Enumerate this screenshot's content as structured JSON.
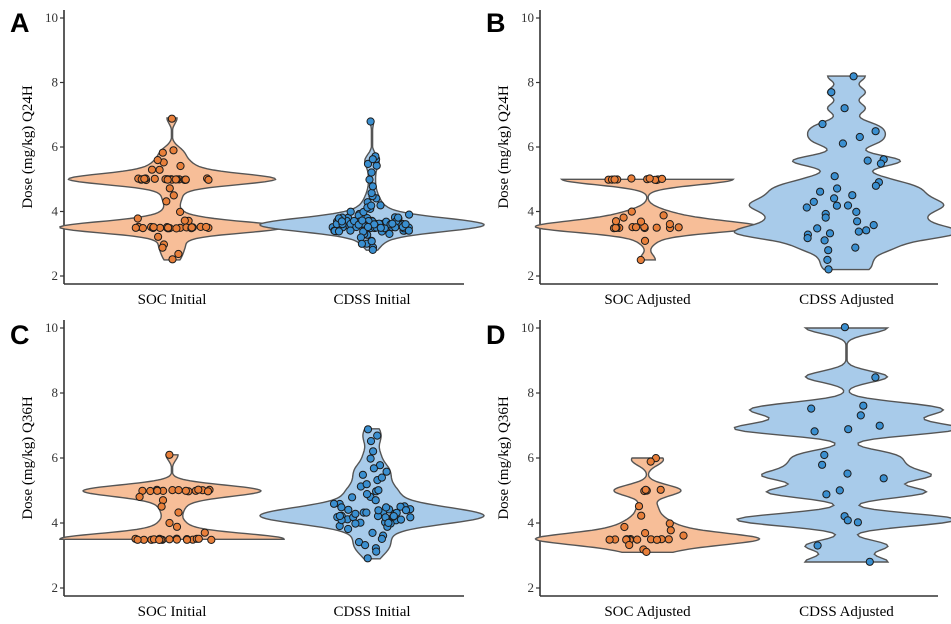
{
  "colors": {
    "soc_fill": "#f7be98",
    "soc_point": "#e87f3a",
    "cdss_fill": "#a8cbea",
    "cdss_point": "#3a8fd0",
    "outline": "#555555",
    "point_edge": "#1b1b1b"
  },
  "chart_data": [
    {
      "type": "violin",
      "panel": "A",
      "ylabel": "Dose (mg/kg) Q24H",
      "ylim": [
        2,
        10
      ],
      "yticks": [
        2,
        4,
        6,
        8,
        10
      ],
      "categories": [
        "SOC Initial",
        "CDSS Initial"
      ],
      "grid": false,
      "series": [
        {
          "values": [
            5.0,
            5.0,
            5.0,
            5.0,
            5.0,
            5.0,
            5.0,
            5.0,
            5.0,
            5.0,
            5.0,
            5.0,
            5.0,
            5.0,
            5.0,
            5.0,
            5.0,
            5.0,
            5.0,
            5.0,
            3.5,
            3.5,
            3.5,
            3.5,
            3.5,
            3.5,
            3.5,
            3.5,
            3.5,
            3.5,
            3.5,
            3.5,
            3.5,
            3.5,
            3.5,
            3.5,
            3.5,
            3.5,
            3.5,
            3.5,
            3.5,
            5.3,
            5.3,
            5.4,
            5.5,
            5.6,
            5.9,
            5.8,
            4.7,
            4.5,
            4.3,
            4.0,
            3.8,
            3.7,
            3.7,
            3.2,
            3.0,
            2.9,
            2.5,
            2.7,
            6.9
          ]
        },
        {
          "values": [
            3.6,
            3.7,
            3.5,
            3.6,
            3.8,
            3.4,
            3.6,
            3.7,
            3.5,
            3.6,
            3.9,
            3.3,
            3.6,
            3.5,
            3.7,
            3.6,
            3.4,
            3.8,
            3.6,
            3.5,
            3.7,
            3.6,
            3.4,
            3.5,
            3.6,
            3.7,
            3.8,
            3.5,
            3.6,
            3.3,
            3.9,
            3.6,
            3.5,
            3.7,
            3.6,
            3.4,
            3.6,
            3.5,
            3.7,
            3.8,
            3.6,
            3.5,
            3.4,
            3.7,
            3.6,
            3.5,
            3.6,
            3.8,
            3.7,
            3.4,
            3.6,
            3.5,
            3.3,
            3.9,
            3.6,
            3.7,
            3.5,
            3.6,
            3.4,
            3.8,
            3.6,
            3.5,
            3.7,
            3.6,
            3.4,
            3.5,
            3.6,
            3.7,
            3.8,
            3.5,
            3.6,
            3.2,
            4.0,
            3.6,
            3.5,
            3.7,
            3.6,
            3.4,
            3.6,
            3.5,
            3.7,
            3.8,
            3.6,
            3.5,
            3.4,
            3.7,
            3.6,
            3.5,
            4.1,
            4.2,
            4.3,
            4.0,
            4.1,
            4.4,
            4.5,
            4.2,
            3.1,
            3.0,
            2.9,
            2.8,
            3.1,
            3.0,
            4.6,
            4.8,
            5.0,
            5.2,
            5.4,
            5.5,
            5.6,
            5.7,
            5.6,
            6.8
          ]
        }
      ]
    },
    {
      "type": "violin",
      "panel": "B",
      "ylabel": "Dose (mg/kg) Q24H",
      "ylim": [
        2,
        10
      ],
      "yticks": [
        2,
        4,
        6,
        8,
        10
      ],
      "categories": [
        "SOC Adjusted",
        "CDSS Adjusted"
      ],
      "grid": false,
      "series": [
        {
          "values": [
            5.0,
            5.0,
            5.0,
            5.0,
            5.0,
            5.0,
            5.0,
            5.0,
            5.0,
            5.0,
            5.0,
            3.5,
            3.5,
            3.5,
            3.5,
            3.5,
            3.5,
            3.5,
            3.5,
            3.5,
            3.5,
            3.5,
            3.5,
            3.7,
            3.7,
            3.6,
            3.8,
            4.0,
            3.9,
            3.1,
            2.5
          ]
        },
        {
          "values": [
            8.2,
            7.7,
            7.2,
            6.7,
            6.1,
            5.6,
            5.6,
            5.5,
            5.1,
            4.9,
            4.8,
            4.7,
            4.6,
            4.5,
            4.4,
            4.3,
            4.2,
            4.2,
            4.1,
            4.0,
            3.9,
            3.8,
            3.7,
            3.6,
            3.5,
            3.4,
            3.4,
            3.3,
            3.3,
            3.2,
            3.1,
            2.9,
            2.8,
            2.5,
            2.2,
            6.3,
            6.5
          ]
        }
      ]
    },
    {
      "type": "violin",
      "panel": "C",
      "ylabel": "Dose (mg/kg) Q36H",
      "ylim": [
        2,
        10
      ],
      "yticks": [
        2,
        4,
        6,
        8,
        10
      ],
      "categories": [
        "SOC Initial",
        "CDSS Initial"
      ],
      "grid": false,
      "series": [
        {
          "values": [
            5.0,
            5.0,
            5.0,
            5.0,
            5.0,
            5.0,
            5.0,
            5.0,
            5.0,
            5.0,
            5.0,
            5.0,
            5.0,
            5.0,
            3.5,
            3.5,
            3.5,
            3.5,
            3.5,
            3.5,
            3.5,
            3.5,
            3.5,
            3.5,
            3.5,
            3.5,
            3.5,
            3.5,
            3.5,
            3.5,
            3.5,
            3.5,
            4.8,
            4.7,
            4.5,
            4.3,
            4.0,
            3.9,
            3.7,
            6.1
          ]
        },
        {
          "values": [
            4.2,
            4.3,
            4.1,
            4.4,
            4.0,
            4.2,
            4.5,
            4.3,
            4.1,
            4.2,
            3.9,
            4.4,
            4.2,
            4.3,
            4.0,
            4.6,
            4.1,
            4.2,
            4.3,
            4.8,
            4.5,
            4.0,
            3.8,
            4.2,
            4.4,
            4.1,
            4.3,
            4.7,
            4.2,
            4.0,
            4.5,
            4.9,
            5.0,
            5.1,
            5.2,
            5.3,
            5.5,
            5.6,
            5.8,
            6.0,
            6.2,
            6.5,
            6.9,
            3.7,
            3.6,
            3.5,
            3.4,
            3.3,
            3.2,
            3.1,
            2.9,
            4.6,
            4.4,
            4.1,
            4.3,
            4.8,
            5.0,
            4.2,
            3.9,
            4.5,
            5.4,
            5.7,
            6.7,
            4.0,
            4.2,
            4.4
          ]
        }
      ]
    },
    {
      "type": "violin",
      "panel": "D",
      "ylabel": "Dose (mg/kg) Q36H",
      "ylim": [
        2,
        10
      ],
      "yticks": [
        2,
        4,
        6,
        8,
        10
      ],
      "categories": [
        "SOC Adjusted",
        "CDSS Adjusted"
      ],
      "grid": false,
      "series": [
        {
          "values": [
            6.0,
            5.9,
            5.0,
            5.0,
            5.0,
            5.0,
            4.5,
            4.0,
            3.9,
            3.8,
            3.7,
            3.6,
            3.5,
            3.5,
            3.5,
            3.5,
            3.5,
            3.5,
            3.5,
            3.5,
            3.5,
            3.5,
            3.5,
            3.3,
            3.2,
            3.1,
            4.2
          ]
        },
        {
          "values": [
            10.0,
            8.5,
            7.6,
            7.5,
            7.3,
            7.0,
            6.9,
            6.8,
            6.1,
            5.8,
            5.5,
            5.4,
            5.0,
            4.9,
            4.2,
            4.1,
            4.0,
            3.3,
            2.8
          ]
        }
      ]
    }
  ]
}
